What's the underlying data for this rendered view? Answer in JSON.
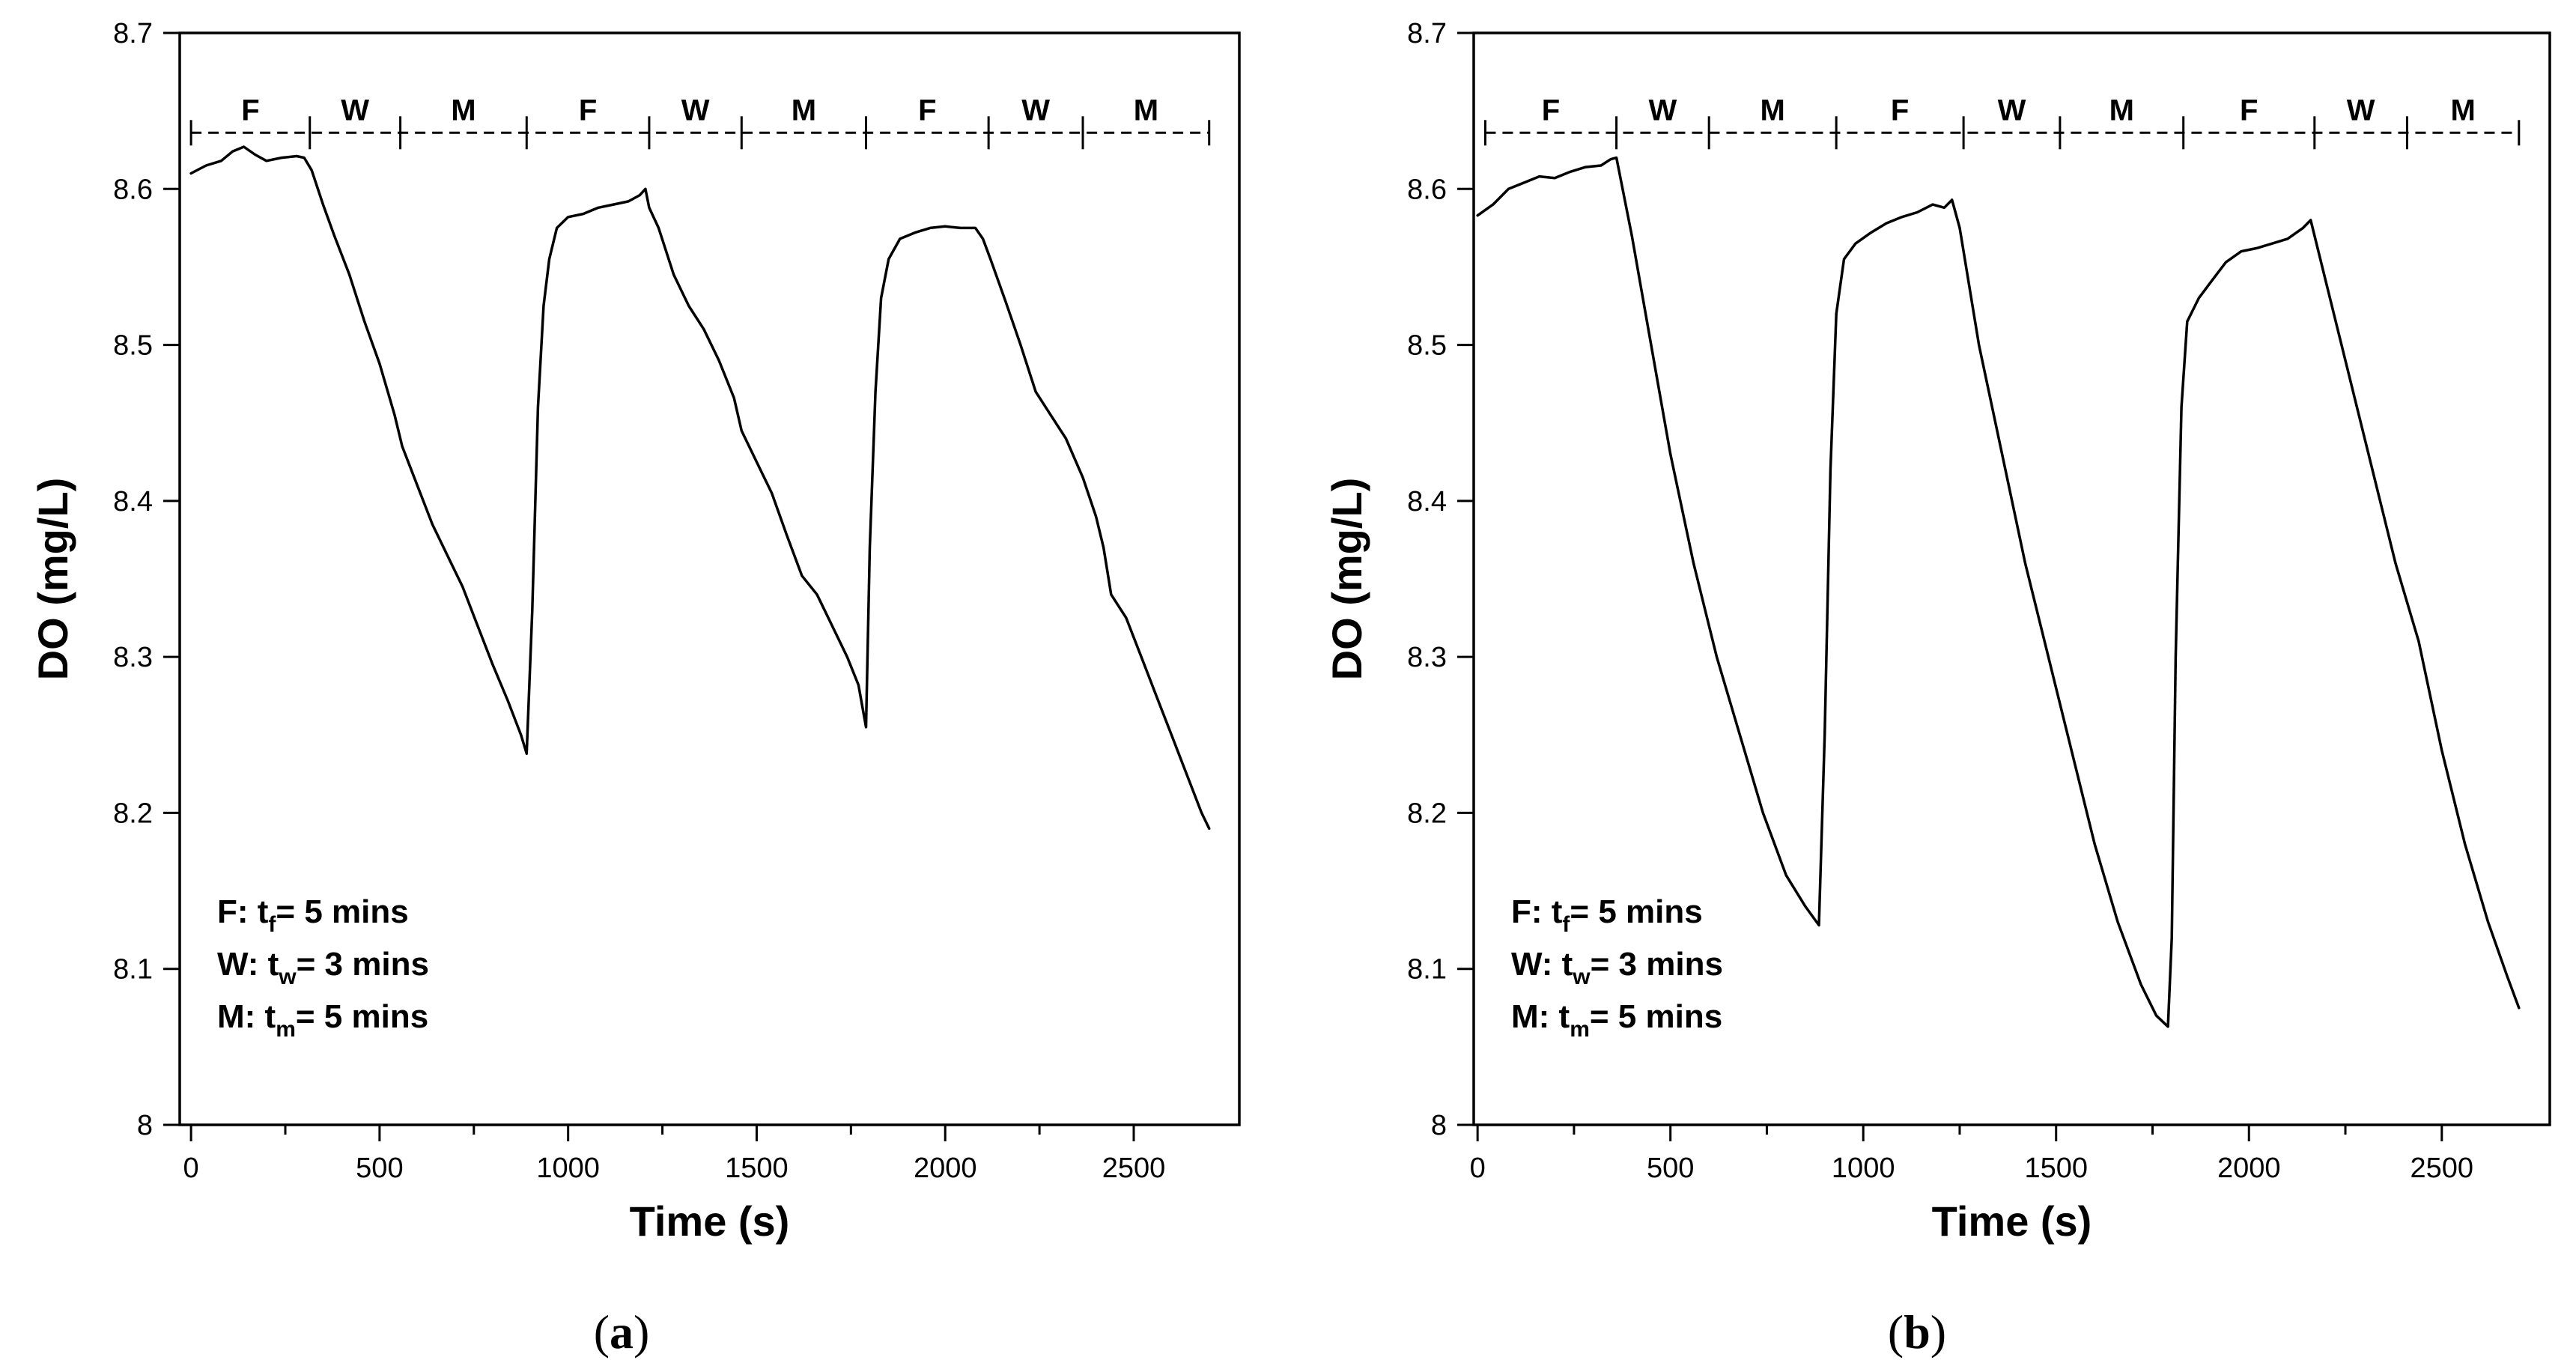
{
  "chart_data": [
    {
      "type": "line",
      "panel_label": "(a)",
      "panel_letter": "a",
      "xlabel": "Time (s)",
      "ylabel": "DO (mg/L)",
      "xlim": [
        -30,
        2780
      ],
      "ylim": [
        8.0,
        8.7
      ],
      "xticks": [
        0,
        500,
        1000,
        1500,
        2000,
        2500
      ],
      "xtick_labels": [
        "0",
        "500",
        "1000",
        "1500",
        "2000",
        "2500"
      ],
      "yticks": [
        8.0,
        8.1,
        8.2,
        8.3,
        8.4,
        8.5,
        8.6,
        8.7
      ],
      "ytick_labels": [
        "8",
        "8.1",
        "8.2",
        "8.3",
        "8.4",
        "8.5",
        "8.6",
        "8.7"
      ],
      "grid": false,
      "phase_bar": {
        "y": 8.636,
        "boundaries": [
          0,
          315,
          555,
          890,
          1215,
          1460,
          1790,
          2115,
          2365,
          2700
        ],
        "labels": [
          "F",
          "W",
          "M",
          "F",
          "W",
          "M",
          "F",
          "W",
          "M"
        ]
      },
      "legend": {
        "position": "bottom-left",
        "lines": [
          {
            "prefix": "F:  t",
            "sub": "f",
            "suffix": "= 5 mins"
          },
          {
            "prefix": "W: t",
            "sub": "w",
            "suffix": "= 3 mins"
          },
          {
            "prefix": "M: t",
            "sub": "m",
            "suffix": "= 5 mins"
          }
        ]
      },
      "series": [
        {
          "name": "DO",
          "points": [
            [
              0,
              8.61
            ],
            [
              40,
              8.615
            ],
            [
              80,
              8.618
            ],
            [
              110,
              8.624
            ],
            [
              140,
              8.627
            ],
            [
              170,
              8.622
            ],
            [
              200,
              8.618
            ],
            [
              240,
              8.62
            ],
            [
              280,
              8.621
            ],
            [
              300,
              8.62
            ],
            [
              320,
              8.612
            ],
            [
              350,
              8.59
            ],
            [
              380,
              8.57
            ],
            [
              420,
              8.545
            ],
            [
              460,
              8.515
            ],
            [
              500,
              8.488
            ],
            [
              540,
              8.455
            ],
            [
              560,
              8.435
            ],
            [
              600,
              8.41
            ],
            [
              640,
              8.385
            ],
            [
              680,
              8.365
            ],
            [
              720,
              8.345
            ],
            [
              760,
              8.32
            ],
            [
              800,
              8.295
            ],
            [
              840,
              8.272
            ],
            [
              875,
              8.25
            ],
            [
              890,
              8.238
            ],
            [
              905,
              8.33
            ],
            [
              920,
              8.46
            ],
            [
              935,
              8.525
            ],
            [
              950,
              8.555
            ],
            [
              970,
              8.575
            ],
            [
              1000,
              8.582
            ],
            [
              1040,
              8.584
            ],
            [
              1080,
              8.588
            ],
            [
              1120,
              8.59
            ],
            [
              1160,
              8.592
            ],
            [
              1190,
              8.596
            ],
            [
              1205,
              8.6
            ],
            [
              1215,
              8.588
            ],
            [
              1240,
              8.575
            ],
            [
              1280,
              8.545
            ],
            [
              1320,
              8.525
            ],
            [
              1360,
              8.51
            ],
            [
              1400,
              8.49
            ],
            [
              1440,
              8.466
            ],
            [
              1460,
              8.445
            ],
            [
              1500,
              8.425
            ],
            [
              1540,
              8.405
            ],
            [
              1580,
              8.378
            ],
            [
              1620,
              8.352
            ],
            [
              1660,
              8.34
            ],
            [
              1700,
              8.32
            ],
            [
              1740,
              8.3
            ],
            [
              1770,
              8.282
            ],
            [
              1790,
              8.255
            ],
            [
              1800,
              8.37
            ],
            [
              1815,
              8.47
            ],
            [
              1830,
              8.53
            ],
            [
              1850,
              8.555
            ],
            [
              1880,
              8.568
            ],
            [
              1920,
              8.572
            ],
            [
              1960,
              8.575
            ],
            [
              2000,
              8.576
            ],
            [
              2040,
              8.575
            ],
            [
              2080,
              8.575
            ],
            [
              2100,
              8.568
            ],
            [
              2120,
              8.555
            ],
            [
              2160,
              8.528
            ],
            [
              2200,
              8.5
            ],
            [
              2240,
              8.47
            ],
            [
              2280,
              8.455
            ],
            [
              2320,
              8.44
            ],
            [
              2365,
              8.415
            ],
            [
              2400,
              8.39
            ],
            [
              2420,
              8.37
            ],
            [
              2440,
              8.34
            ],
            [
              2480,
              8.325
            ],
            [
              2520,
              8.3
            ],
            [
              2560,
              8.275
            ],
            [
              2600,
              8.25
            ],
            [
              2640,
              8.225
            ],
            [
              2680,
              8.2
            ],
            [
              2700,
              8.19
            ]
          ]
        }
      ]
    },
    {
      "type": "line",
      "panel_label": "(b)",
      "panel_letter": "b",
      "xlabel": "Time (s)",
      "ylabel": "DO (mg/L)",
      "xlim": [
        -10,
        2780
      ],
      "ylim": [
        8.0,
        8.7
      ],
      "xticks": [
        0,
        500,
        1000,
        1500,
        2000,
        2500
      ],
      "xtick_labels": [
        "0",
        "500",
        "1000",
        "1500",
        "2000",
        "2500"
      ],
      "yticks": [
        8.0,
        8.1,
        8.2,
        8.3,
        8.4,
        8.5,
        8.6,
        8.7
      ],
      "ytick_labels": [
        "8",
        "8.1",
        "8.2",
        "8.3",
        "8.4",
        "8.5",
        "8.6",
        "8.7"
      ],
      "grid": false,
      "phase_bar": {
        "y": 8.636,
        "boundaries": [
          20,
          360,
          600,
          930,
          1260,
          1510,
          1830,
          2170,
          2410,
          2700
        ],
        "labels": [
          "F",
          "W",
          "M",
          "F",
          "W",
          "M",
          "F",
          "W",
          "M"
        ]
      },
      "legend": {
        "position": "bottom-left",
        "lines": [
          {
            "prefix": "F:  t",
            "sub": "f",
            "suffix": "= 5 mins"
          },
          {
            "prefix": "W: t",
            "sub": "w",
            "suffix": "= 3 mins"
          },
          {
            "prefix": "M: t",
            "sub": "m",
            "suffix": "= 5 mins"
          }
        ]
      },
      "series": [
        {
          "name": "DO",
          "points": [
            [
              0,
              8.583
            ],
            [
              40,
              8.59
            ],
            [
              80,
              8.6
            ],
            [
              120,
              8.604
            ],
            [
              160,
              8.608
            ],
            [
              200,
              8.607
            ],
            [
              240,
              8.611
            ],
            [
              280,
              8.614
            ],
            [
              320,
              8.615
            ],
            [
              345,
              8.619
            ],
            [
              360,
              8.62
            ],
            [
              400,
              8.57
            ],
            [
              450,
              8.5
            ],
            [
              500,
              8.43
            ],
            [
              560,
              8.36
            ],
            [
              620,
              8.3
            ],
            [
              680,
              8.25
            ],
            [
              740,
              8.2
            ],
            [
              800,
              8.16
            ],
            [
              850,
              8.14
            ],
            [
              885,
              8.128
            ],
            [
              900,
              8.25
            ],
            [
              915,
              8.42
            ],
            [
              930,
              8.52
            ],
            [
              950,
              8.555
            ],
            [
              980,
              8.565
            ],
            [
              1020,
              8.572
            ],
            [
              1060,
              8.578
            ],
            [
              1100,
              8.582
            ],
            [
              1140,
              8.585
            ],
            [
              1180,
              8.59
            ],
            [
              1210,
              8.588
            ],
            [
              1230,
              8.593
            ],
            [
              1250,
              8.575
            ],
            [
              1300,
              8.5
            ],
            [
              1360,
              8.43
            ],
            [
              1420,
              8.36
            ],
            [
              1480,
              8.3
            ],
            [
              1540,
              8.24
            ],
            [
              1600,
              8.18
            ],
            [
              1660,
              8.13
            ],
            [
              1720,
              8.09
            ],
            [
              1760,
              8.07
            ],
            [
              1790,
              8.063
            ],
            [
              1800,
              8.12
            ],
            [
              1810,
              8.3
            ],
            [
              1825,
              8.46
            ],
            [
              1840,
              8.515
            ],
            [
              1870,
              8.53
            ],
            [
              1900,
              8.54
            ],
            [
              1940,
              8.553
            ],
            [
              1980,
              8.56
            ],
            [
              2020,
              8.562
            ],
            [
              2060,
              8.565
            ],
            [
              2100,
              8.568
            ],
            [
              2140,
              8.575
            ],
            [
              2160,
              8.58
            ],
            [
              2200,
              8.54
            ],
            [
              2260,
              8.48
            ],
            [
              2320,
              8.42
            ],
            [
              2380,
              8.36
            ],
            [
              2440,
              8.31
            ],
            [
              2500,
              8.24
            ],
            [
              2560,
              8.18
            ],
            [
              2620,
              8.13
            ],
            [
              2670,
              8.095
            ],
            [
              2700,
              8.075
            ]
          ]
        }
      ]
    }
  ]
}
